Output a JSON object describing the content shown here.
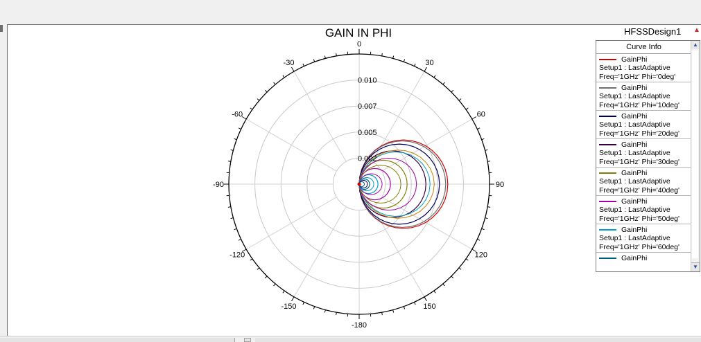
{
  "design_name": "HFSSDesign1",
  "chart_data": {
    "type": "polar-line",
    "title": "GAIN IN PHI",
    "radial_ticks": [
      "0.010",
      "0.007",
      "0.005",
      "0.002"
    ],
    "radial_range": [
      0,
      0.0125
    ],
    "angle_ticks": [
      "0",
      "30",
      "60",
      "90",
      "120",
      "150",
      "-180",
      "-150",
      "-120",
      "-90",
      "-60",
      "-30"
    ],
    "angle_tick_values": [
      0,
      30,
      60,
      90,
      120,
      150,
      180,
      -150,
      -120,
      -90,
      -60,
      -30
    ],
    "grid": true,
    "legend_position": "right",
    "series": [
      {
        "name": "GainPhi",
        "setup": "Setup1 : LastAdaptive",
        "freq": "Freq='1GHz' Phi='0deg'",
        "color": "#cc0000",
        "peak": 0.0085
      },
      {
        "name": "GainPhi",
        "setup": "Setup1 : LastAdaptive",
        "freq": "Freq='1GHz' Phi='10deg'",
        "color": "#6e6e6e",
        "peak": 0.0083
      },
      {
        "name": "GainPhi",
        "setup": "Setup1 : LastAdaptive",
        "freq": "Freq='1GHz' Phi='20deg'",
        "color": "#000060",
        "peak": 0.0077
      },
      {
        "name": "GainPhi",
        "setup": "Setup1 : LastAdaptive",
        "freq": "Freq='1GHz' Phi='30deg'",
        "color": "#3a0040",
        "peak": 0.0064
      },
      {
        "name": "GainPhi",
        "setup": "Setup1 : LastAdaptive",
        "freq": "Freq='1GHz' Phi='40deg'",
        "color": "#808000",
        "peak": 0.0046
      },
      {
        "name": "GainPhi",
        "setup": "Setup1 : LastAdaptive",
        "freq": "Freq='1GHz' Phi='50deg'",
        "color": "#a000a0",
        "peak": 0.003
      },
      {
        "name": "GainPhi",
        "setup": "Setup1 : LastAdaptive",
        "freq": "Freq='1GHz' Phi='60deg'",
        "color": "#00a0c8",
        "peak": 0.0018
      },
      {
        "name": "GainPhi",
        "color": "#006080",
        "peak": 0.001
      }
    ]
  },
  "legend": {
    "header": "Curve Info"
  }
}
